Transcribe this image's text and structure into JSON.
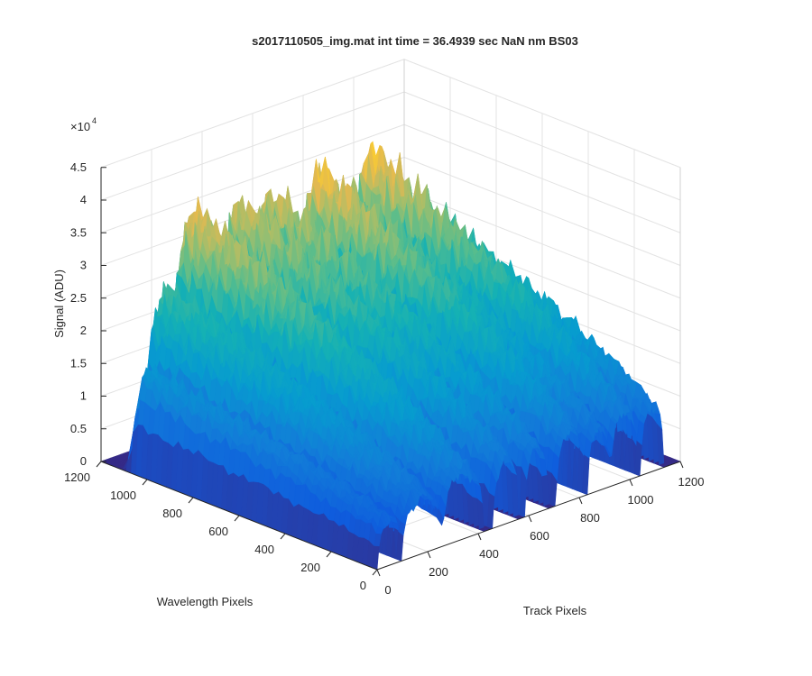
{
  "chart_data": {
    "type": "surface",
    "title": "s2017110505_img.mat int time = 36.4939 sec  NaN nm BS03",
    "xlabel": "Track Pixels",
    "ylabel": "Wavelength Pixels",
    "zlabel": "Signal (ADU)",
    "exponent_label": "×10",
    "exponent_power": "4",
    "xlim": [
      0,
      1200
    ],
    "ylim": [
      0,
      1200
    ],
    "zlim": [
      0,
      4.5
    ],
    "z_scale": 10000,
    "x_ticks": [
      "0",
      "200",
      "400",
      "600",
      "800",
      "1000",
      "1200"
    ],
    "y_ticks": [
      "0",
      "200",
      "400",
      "600",
      "800",
      "1000",
      "1200"
    ],
    "z_ticks": [
      "0",
      "0.5",
      "1",
      "1.5",
      "2",
      "2.5",
      "3",
      "3.5",
      "4",
      "4.5"
    ],
    "grid": true,
    "colormap": "parula",
    "series": [
      {
        "x_center": 50,
        "half_width": 45,
        "peak": 1.55,
        "y_extent": 0.9,
        "profile_start": 0.45
      },
      {
        "x_center": 180,
        "half_width": 80,
        "peak": 2.45,
        "y_extent": 0.95,
        "profile_start": 0.35
      },
      {
        "x_center": 340,
        "half_width": 80,
        "peak": 3.35,
        "y_extent": 1.0,
        "profile_start": 0.3
      },
      {
        "x_center": 510,
        "half_width": 50,
        "peak": 3.3,
        "y_extent": 1.0,
        "profile_start": 0.3
      },
      {
        "x_center": 630,
        "half_width": 45,
        "peak": 3.3,
        "y_extent": 1.0,
        "profile_start": 0.3
      },
      {
        "x_center": 770,
        "half_width": 60,
        "peak": 3.5,
        "y_extent": 0.95,
        "profile_start": 0.3
      },
      {
        "x_center": 880,
        "half_width": 45,
        "peak": 3.1,
        "y_extent": 0.95,
        "profile_start": 0.3
      },
      {
        "x_center": 980,
        "half_width": 55,
        "peak": 3.5,
        "y_extent": 0.95,
        "profile_start": 0.3
      },
      {
        "x_center": 1090,
        "half_width": 45,
        "peak": 2.8,
        "y_extent": 0.9,
        "profile_start": 0.35
      }
    ]
  }
}
